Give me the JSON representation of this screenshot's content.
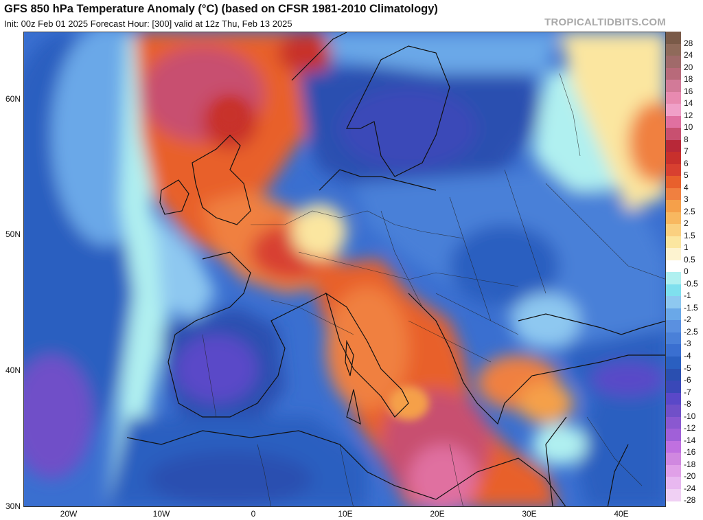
{
  "header": {
    "title": "GFS 850 hPa Temperature Anomaly (°C) (based on CFSR 1981-2010 Climatology)",
    "subtitle": "Init: 00z Feb 01 2025   Forecast Hour: [300]   valid at 12z Thu, Feb 13 2025",
    "watermark": "TROPICALTIDBITS.COM"
  },
  "map": {
    "lat_ticks": [
      "60N",
      "50N",
      "40N",
      "30N"
    ],
    "lon_ticks": [
      "20W",
      "10W",
      "0",
      "10E",
      "20E",
      "30E",
      "40E"
    ],
    "colors": {
      "ocean_blue": "#3a6fd0",
      "deep_blue": "#2a4fb0",
      "light_blue": "#8ec8f0",
      "cyan": "#7fe0ee",
      "white": "#ffffff",
      "yellow": "#fbe6a0",
      "orange": "#f5a04a",
      "red_orange": "#e8602c",
      "red": "#c8302c",
      "rose": "#c85070",
      "pink": "#e070a0",
      "purple": "#7050c8"
    }
  },
  "colorbar": {
    "levels": [
      {
        "label": "28",
        "color": "#7a5a48"
      },
      {
        "label": "24",
        "color": "#8f6a5a"
      },
      {
        "label": "20",
        "color": "#a06a6a"
      },
      {
        "label": "18",
        "color": "#b86a7a"
      },
      {
        "label": "16",
        "color": "#d27a98"
      },
      {
        "label": "14",
        "color": "#e88ab0"
      },
      {
        "label": "12",
        "color": "#f0a0c8"
      },
      {
        "label": "10",
        "color": "#e070a0"
      },
      {
        "label": "8",
        "color": "#c85070"
      },
      {
        "label": "7",
        "color": "#b82838"
      },
      {
        "label": "6",
        "color": "#c8302c"
      },
      {
        "label": "5",
        "color": "#d84030"
      },
      {
        "label": "4",
        "color": "#e8602c"
      },
      {
        "label": "3",
        "color": "#f08040"
      },
      {
        "label": "2.5",
        "color": "#f5a04a"
      },
      {
        "label": "2",
        "color": "#f8b860"
      },
      {
        "label": "1.5",
        "color": "#fad080"
      },
      {
        "label": "1",
        "color": "#fbe6a0"
      },
      {
        "label": "0.5",
        "color": "#fdf3d0"
      },
      {
        "label": "0",
        "color": "#ffffff"
      },
      {
        "label": "-0.5",
        "color": "#b0f0f0"
      },
      {
        "label": "-1",
        "color": "#7fe0ee"
      },
      {
        "label": "-1.5",
        "color": "#8ec8f0"
      },
      {
        "label": "-2",
        "color": "#6aa8e8"
      },
      {
        "label": "-2.5",
        "color": "#5a90e0"
      },
      {
        "label": "-3",
        "color": "#4a80d8"
      },
      {
        "label": "-4",
        "color": "#3a6fd0"
      },
      {
        "label": "-5",
        "color": "#2a5fc0"
      },
      {
        "label": "-6",
        "color": "#2a4fb0"
      },
      {
        "label": "-7",
        "color": "#3a48b8"
      },
      {
        "label": "-8",
        "color": "#5a48c8"
      },
      {
        "label": "-10",
        "color": "#7050c8"
      },
      {
        "label": "-12",
        "color": "#8a58d0"
      },
      {
        "label": "-14",
        "color": "#a060d8"
      },
      {
        "label": "-16",
        "color": "#c070e0"
      },
      {
        "label": "-18",
        "color": "#d088e0"
      },
      {
        "label": "-20",
        "color": "#e0a0e8"
      },
      {
        "label": "-24",
        "color": "#e8b8f0"
      },
      {
        "label": "-28",
        "color": "#f0d0f4"
      }
    ]
  }
}
